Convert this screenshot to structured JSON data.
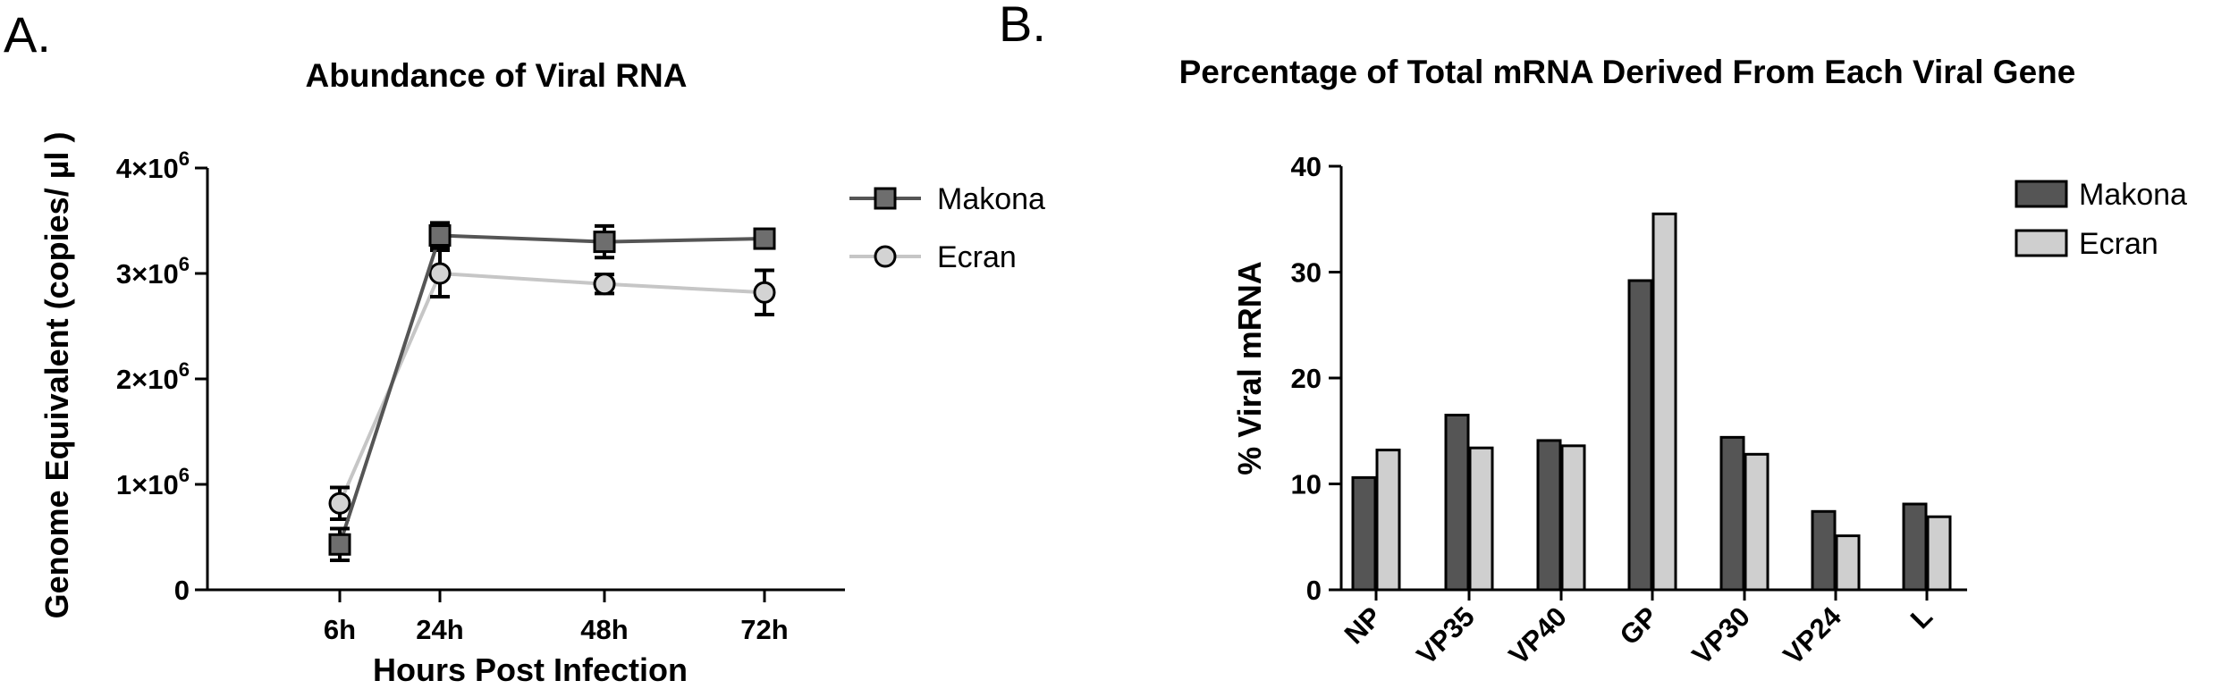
{
  "figure": {
    "panels": [
      {
        "letter": "A."
      },
      {
        "letter": "B."
      }
    ]
  },
  "chart_data": [
    {
      "type": "line",
      "title": "Abundance of Viral RNA",
      "xlabel": "Hours Post Infection",
      "ylabel": "Genome Equivalent (copies/ µl )",
      "categories": [
        "6h",
        "24h",
        "48h",
        "72h"
      ],
      "ylim": [
        0,
        4000000
      ],
      "yticks": [
        {
          "value": 0,
          "label": "0",
          "exp": ""
        },
        {
          "value": 1000000,
          "label": "1×10",
          "exp": "6"
        },
        {
          "value": 2000000,
          "label": "2×10",
          "exp": "6"
        },
        {
          "value": 3000000,
          "label": "3×10",
          "exp": "6"
        },
        {
          "value": 4000000,
          "label": "4×10",
          "exp": "6"
        }
      ],
      "grid": false,
      "legend": "top-right",
      "series": [
        {
          "name": "Makona",
          "marker": "square",
          "color": "#555555",
          "fill": "#6e6e6e",
          "values": [
            430000,
            3360000,
            3300000,
            3330000
          ],
          "errors": [
            150000,
            120000,
            150000,
            80000
          ]
        },
        {
          "name": "Ecran",
          "marker": "circle",
          "color": "#c6c6c6",
          "fill": "#d3d3d3",
          "values": [
            820000,
            3000000,
            2900000,
            2820000
          ],
          "errors": [
            150000,
            220000,
            90000,
            210000
          ]
        }
      ]
    },
    {
      "type": "bar",
      "title": "Percentage of Total mRNA Derived From Each Viral Gene",
      "xlabel": "",
      "ylabel": "% Viral mRNA",
      "categories": [
        "NP",
        "VP35",
        "VP40",
        "GP",
        "VP30",
        "VP24",
        "L"
      ],
      "ylim": [
        0,
        40
      ],
      "yticks": [
        0,
        10,
        20,
        30,
        40
      ],
      "grid": false,
      "legend": "top-right",
      "series": [
        {
          "name": "Makona",
          "color": "#555555",
          "values": [
            10.6,
            16.5,
            14.1,
            29.2,
            14.4,
            7.4,
            8.1
          ]
        },
        {
          "name": "Ecran",
          "color": "#cfcfcf",
          "values": [
            13.2,
            13.4,
            13.6,
            35.5,
            12.8,
            5.1,
            6.9
          ]
        }
      ]
    }
  ]
}
